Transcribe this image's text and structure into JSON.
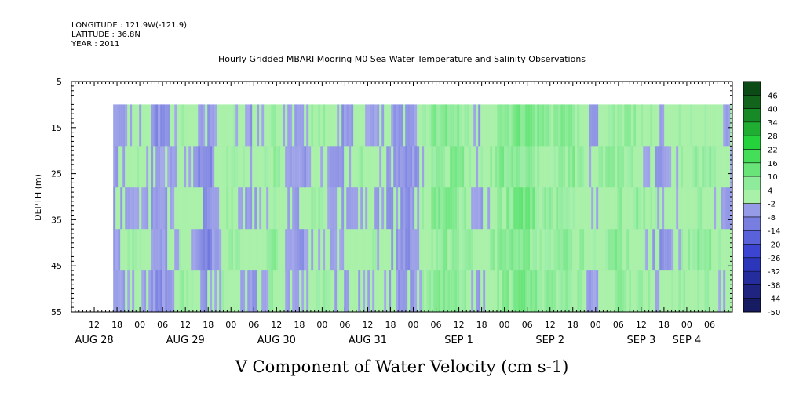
{
  "header": {
    "longitude": "LONGITUDE : 121.9W(-121.9)",
    "latitude": "LATITUDE : 36.8N",
    "year": "YEAR : 2011"
  },
  "chart_data": {
    "type": "heatmap",
    "title": "Hourly Gridded MBARI Mooring M0 Sea Water Temperature and Salinity Observations",
    "xlabel": "V Component of Water Velocity (cm s-1)",
    "ylabel": "DEPTH (m)",
    "y_axis": {
      "range": [
        5,
        55
      ],
      "reversed": true,
      "ticks": [
        5,
        15,
        25,
        35,
        45,
        55
      ],
      "data_depth_range": [
        10,
        55
      ]
    },
    "x_axis": {
      "start": "2011-08-28 06:00",
      "end": "2011-09-04 12:00",
      "data_start": "2011-08-28 17:00",
      "hour_ticks": [
        {
          "h": 12,
          "t": "2011-08-28 12:00",
          "label": "12"
        },
        {
          "h": 18,
          "t": "2011-08-28 18:00",
          "label": "18"
        },
        {
          "h": 0,
          "t": "2011-08-29 00:00",
          "label": "00"
        },
        {
          "h": 6,
          "t": "2011-08-29 06:00",
          "label": "06"
        },
        {
          "h": 12,
          "t": "2011-08-29 12:00",
          "label": "12"
        },
        {
          "h": 18,
          "t": "2011-08-29 18:00",
          "label": "18"
        },
        {
          "h": 0,
          "t": "2011-08-30 00:00",
          "label": "00"
        },
        {
          "h": 6,
          "t": "2011-08-30 06:00",
          "label": "06"
        },
        {
          "h": 12,
          "t": "2011-08-30 12:00",
          "label": "12"
        },
        {
          "h": 18,
          "t": "2011-08-30 18:00",
          "label": "18"
        },
        {
          "h": 0,
          "t": "2011-08-31 00:00",
          "label": "00"
        },
        {
          "h": 6,
          "t": "2011-08-31 06:00",
          "label": "06"
        },
        {
          "h": 12,
          "t": "2011-08-31 12:00",
          "label": "12"
        },
        {
          "h": 18,
          "t": "2011-08-31 18:00",
          "label": "18"
        },
        {
          "h": 0,
          "t": "2011-09-01 00:00",
          "label": "00"
        },
        {
          "h": 6,
          "t": "2011-09-01 06:00",
          "label": "06"
        },
        {
          "h": 12,
          "t": "2011-09-01 12:00",
          "label": "12"
        },
        {
          "h": 18,
          "t": "2011-09-01 18:00",
          "label": "18"
        },
        {
          "h": 0,
          "t": "2011-09-02 00:00",
          "label": "00"
        },
        {
          "h": 6,
          "t": "2011-09-02 06:00",
          "label": "06"
        },
        {
          "h": 12,
          "t": "2011-09-02 12:00",
          "label": "12"
        },
        {
          "h": 18,
          "t": "2011-09-02 18:00",
          "label": "18"
        },
        {
          "h": 0,
          "t": "2011-09-03 00:00",
          "label": "00"
        },
        {
          "h": 6,
          "t": "2011-09-03 06:00",
          "label": "06"
        },
        {
          "h": 12,
          "t": "2011-09-03 12:00",
          "label": "12"
        },
        {
          "h": 18,
          "t": "2011-09-03 18:00",
          "label": "18"
        },
        {
          "h": 0,
          "t": "2011-09-04 00:00",
          "label": "00"
        },
        {
          "h": 6,
          "t": "2011-09-04 06:00",
          "label": "06"
        }
      ],
      "date_labels": [
        {
          "t": "2011-08-28 12:00",
          "label": "AUG 28"
        },
        {
          "t": "2011-08-29 12:00",
          "label": "AUG 29"
        },
        {
          "t": "2011-08-30 12:00",
          "label": "AUG 30"
        },
        {
          "t": "2011-08-31 12:00",
          "label": "AUG 31"
        },
        {
          "t": "2011-09-01 12:00",
          "label": "SEP  1"
        },
        {
          "t": "2011-09-02 12:00",
          "label": "SEP  2"
        },
        {
          "t": "2011-09-03 12:00",
          "label": "SEP  3"
        },
        {
          "t": "2011-09-04 00:00",
          "label": "SEP  4"
        }
      ]
    },
    "colorbar": {
      "levels": [
        48,
        46,
        40,
        34,
        28,
        22,
        16,
        10,
        4,
        -2,
        -8,
        -14,
        -20,
        -26,
        -32,
        -38,
        -44,
        -50
      ],
      "labels": [
        "46",
        "40",
        "34",
        "28",
        "22",
        "16",
        "10",
        "4",
        "-2",
        "-8",
        "-14",
        "-20",
        "-26",
        "-32",
        "-38",
        "-44",
        "-50"
      ]
    },
    "field_description_by_time": [
      {
        "t": "2011-08-28 17:00",
        "v": -4
      },
      {
        "t": "2011-08-28 23:00",
        "v": 2
      },
      {
        "t": "2011-08-29 05:00",
        "v": -6
      },
      {
        "t": "2011-08-29 11:00",
        "v": 3
      },
      {
        "t": "2011-08-29 17:00",
        "v": -8
      },
      {
        "t": "2011-08-29 23:00",
        "v": 4
      },
      {
        "t": "2011-08-30 05:00",
        "v": -3
      },
      {
        "t": "2011-08-30 11:00",
        "v": 5
      },
      {
        "t": "2011-08-30 17:00",
        "v": -5
      },
      {
        "t": "2011-08-30 23:00",
        "v": 3
      },
      {
        "t": "2011-08-31 05:00",
        "v": -4
      },
      {
        "t": "2011-08-31 11:00",
        "v": 2
      },
      {
        "t": "2011-08-31 17:00",
        "v": -3
      },
      {
        "t": "2011-08-31 23:00",
        "v": -6
      },
      {
        "t": "2011-09-01 05:00",
        "v": 6
      },
      {
        "t": "2011-09-01 11:00",
        "v": 9
      },
      {
        "t": "2011-09-01 17:00",
        "v": -2
      },
      {
        "t": "2011-09-01 23:00",
        "v": 7
      },
      {
        "t": "2011-09-02 05:00",
        "v": 10
      },
      {
        "t": "2011-09-02 11:00",
        "v": 3
      },
      {
        "t": "2011-09-02 17:00",
        "v": 8
      },
      {
        "t": "2011-09-02 23:00",
        "v": -2
      },
      {
        "t": "2011-09-03 05:00",
        "v": 6
      },
      {
        "t": "2011-09-03 11:00",
        "v": 4
      },
      {
        "t": "2011-09-03 17:00",
        "v": -3
      },
      {
        "t": "2011-09-03 23:00",
        "v": 3
      },
      {
        "t": "2011-09-04 05:00",
        "v": 5
      },
      {
        "t": "2011-09-04 11:00",
        "v": -2
      }
    ]
  }
}
